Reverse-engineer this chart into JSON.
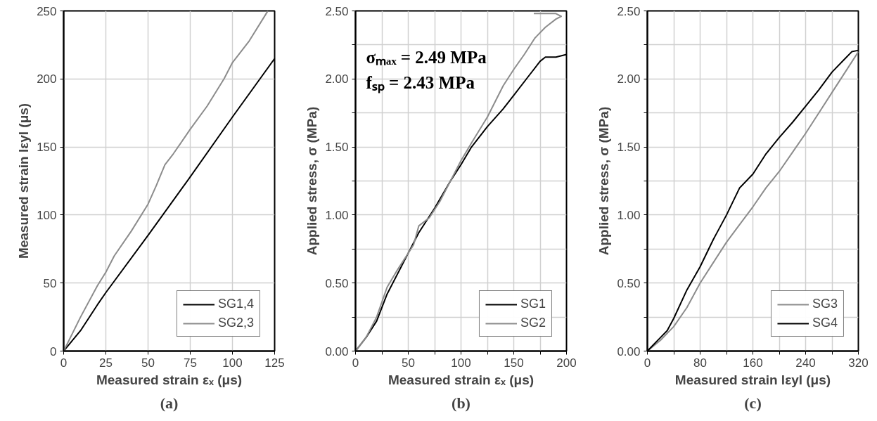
{
  "chart_data": [
    {
      "type": "line",
      "title": "(a)",
      "xlabel": "Measured strain εₓ (μs)",
      "ylabel": "Measured strain lεyl (μs)",
      "xlim": [
        0,
        125
      ],
      "ylim": [
        0,
        250
      ],
      "xticks": [
        0,
        25,
        50,
        75,
        100,
        125
      ],
      "yticks": [
        0,
        50,
        100,
        150,
        200,
        250
      ],
      "grid": true,
      "legend": "bottom right",
      "series": [
        {
          "name": "SG1,4",
          "color": "#000000",
          "x": [
            0,
            10,
            20,
            25,
            50,
            75,
            100,
            125
          ],
          "values": [
            0,
            15,
            34,
            43,
            85,
            128,
            172,
            215
          ]
        },
        {
          "name": "SG2,3",
          "color": "#8c8c8c",
          "x": [
            0,
            10,
            20,
            25,
            30,
            40,
            50,
            55,
            60,
            65,
            75,
            85,
            95,
            100,
            110,
            120,
            121
          ],
          "values": [
            0,
            25,
            48,
            58,
            70,
            88,
            108,
            122,
            137,
            145,
            163,
            180,
            200,
            212,
            228,
            248,
            250
          ]
        }
      ]
    },
    {
      "type": "line",
      "title": "(b)",
      "xlabel": "Measured strain εₓ (μs)",
      "ylabel": "Applied stress, σ (MPa)",
      "xlim": [
        0,
        200
      ],
      "ylim": [
        0,
        2.5
      ],
      "xticks": [
        0,
        {
          "value": 25,
          "label": null
        },
        50,
        {
          "value": 75,
          "label": null
        },
        100,
        {
          "value": 125,
          "label": null
        },
        150,
        {
          "value": 175,
          "label": null
        },
        200
      ],
      "yticks": [
        {
          "value": 0,
          "label": "0.00"
        },
        {
          "value": 0.25,
          "label": null
        },
        {
          "value": 0.5,
          "label": "0.50"
        },
        {
          "value": 0.75,
          "label": null
        },
        {
          "value": 1,
          "label": "1.00"
        },
        {
          "value": 1.25,
          "label": null
        },
        {
          "value": 1.5,
          "label": "1.50"
        },
        {
          "value": 1.75,
          "label": null
        },
        {
          "value": 2,
          "label": "2.00"
        },
        {
          "value": 2.25,
          "label": null
        },
        {
          "value": 2.5,
          "label": "2.50"
        }
      ],
      "grid": true,
      "legend": "bottom right",
      "annotations": [
        "σₘₐₓ = 2.49 MPa",
        "fₛₚ = 2.43 MPa"
      ],
      "series": [
        {
          "name": "SG1",
          "color": "#000000",
          "x": [
            0,
            10,
            20,
            30,
            50,
            60,
            75,
            90,
            100,
            110,
            125,
            140,
            150,
            165,
            175,
            180,
            190,
            200
          ],
          "values": [
            0,
            0.1,
            0.22,
            0.42,
            0.72,
            0.87,
            1.05,
            1.25,
            1.37,
            1.5,
            1.65,
            1.78,
            1.88,
            2.03,
            2.13,
            2.16,
            2.16,
            2.18
          ]
        },
        {
          "name": "SG2",
          "color": "#8c8c8c",
          "x": [
            0,
            10,
            20,
            30,
            40,
            55,
            60,
            70,
            80,
            90,
            100,
            110,
            125,
            140,
            150,
            160,
            170,
            180,
            190,
            195,
            190,
            169
          ],
          "values": [
            0,
            0.1,
            0.25,
            0.47,
            0.6,
            0.78,
            0.92,
            0.98,
            1.1,
            1.25,
            1.4,
            1.53,
            1.72,
            1.95,
            2.07,
            2.18,
            2.3,
            2.38,
            2.44,
            2.46,
            2.48,
            2.48
          ]
        }
      ]
    },
    {
      "type": "line",
      "title": "(c)",
      "xlabel": "Measured strain lεyl (μs)",
      "ylabel": "Applied stress, σ (MPa)",
      "xlim": [
        0,
        320
      ],
      "ylim": [
        0,
        2.5
      ],
      "xticks": [
        0,
        {
          "value": 40,
          "label": null
        },
        80,
        {
          "value": 120,
          "label": null
        },
        160,
        {
          "value": 200,
          "label": null
        },
        240,
        {
          "value": 280,
          "label": null
        },
        320
      ],
      "yticks": [
        {
          "value": 0,
          "label": "0.00"
        },
        {
          "value": 0.25,
          "label": null
        },
        {
          "value": 0.5,
          "label": "0.50"
        },
        {
          "value": 0.75,
          "label": null
        },
        {
          "value": 1,
          "label": "1.00"
        },
        {
          "value": 1.25,
          "label": null
        },
        {
          "value": 1.5,
          "label": "1.50"
        },
        {
          "value": 1.75,
          "label": null
        },
        {
          "value": 2,
          "label": "2.00"
        },
        {
          "value": 2.25,
          "label": null
        },
        {
          "value": 2.5,
          "label": "2.50"
        }
      ],
      "grid": true,
      "legend": "bottom right",
      "series": [
        {
          "name": "SG3",
          "color": "#8c8c8c",
          "x": [
            0,
            20,
            40,
            60,
            80,
            100,
            120,
            140,
            160,
            180,
            200,
            220,
            240,
            260,
            280,
            300,
            320
          ],
          "values": [
            0,
            0.08,
            0.18,
            0.32,
            0.5,
            0.65,
            0.8,
            0.93,
            1.06,
            1.2,
            1.32,
            1.46,
            1.6,
            1.75,
            1.9,
            2.05,
            2.2
          ]
        },
        {
          "name": "SG4",
          "color": "#000000",
          "x": [
            0,
            10,
            20,
            30,
            40,
            60,
            80,
            100,
            120,
            140,
            160,
            180,
            200,
            220,
            240,
            260,
            280,
            300,
            310,
            320
          ],
          "values": [
            0,
            0.05,
            0.1,
            0.15,
            0.24,
            0.45,
            0.62,
            0.82,
            1.0,
            1.2,
            1.3,
            1.45,
            1.57,
            1.68,
            1.8,
            1.92,
            2.05,
            2.15,
            2.2,
            2.21
          ]
        }
      ]
    }
  ]
}
